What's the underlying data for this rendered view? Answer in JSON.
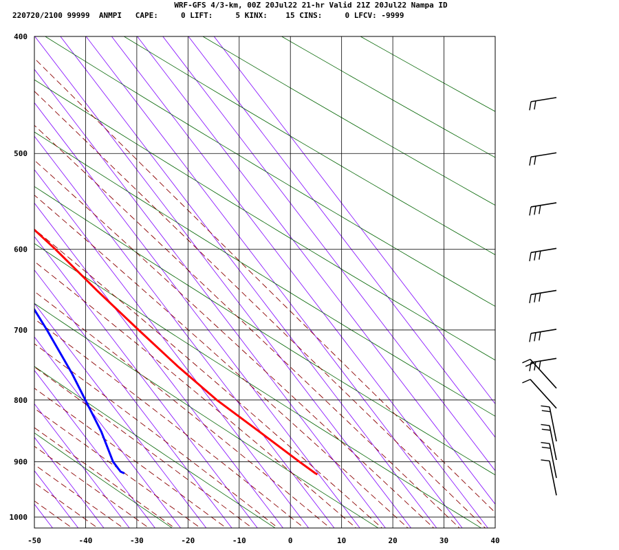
{
  "header": {
    "title": "WRF-GFS 4/3-km, 00Z 20Jul22 21-hr Valid 21Z 20Jul22 Nampa ID",
    "stats": "220720/2100 99999  ANMPI   CAPE:     0 LIFT:     5 KINX:    15 CINS:     0 LFCV: -9999"
  },
  "chart_data": {
    "type": "line",
    "title": "WRF-GFS 4/3-km, 00Z 20Jul22 21-hr Valid 21Z 20Jul22 Nampa ID",
    "subtitle": "220720/2100 99999  ANMPI   CAPE:     0 LIFT:     5 KINX:    15 CINS:     0 LFCV: -9999",
    "xlabel": "",
    "ylabel": "",
    "x_axis": {
      "ticks": [
        -50,
        -40,
        -30,
        -20,
        -10,
        0,
        10,
        20,
        30,
        40
      ],
      "range": [
        -50,
        40
      ],
      "skewed": true
    },
    "y_axis": {
      "ticks": [
        400,
        500,
        600,
        700,
        800,
        900,
        1000
      ],
      "range": [
        400,
        1040
      ],
      "scale": "log",
      "reversed": true
    },
    "grid": true,
    "series": [
      {
        "color": "#ff0000",
        "points": [
          [
            -12.7,
            450
          ],
          [
            -8.9,
            500
          ],
          [
            -5.6,
            550
          ],
          [
            -2.8,
            600
          ],
          [
            -0.8,
            650
          ],
          [
            1.4,
            700
          ],
          [
            3.6,
            750
          ],
          [
            6.2,
            800
          ],
          [
            9.8,
            850
          ],
          [
            13.1,
            900
          ],
          [
            14.5,
            920
          ],
          [
            14.7,
            922
          ]
        ]
      },
      {
        "color": "#0000ff",
        "points": [
          [
            -41.0,
            450
          ],
          [
            -37.4,
            500
          ],
          [
            -26.0,
            553
          ],
          [
            -17.8,
            596
          ],
          [
            -15.1,
            638
          ],
          [
            -16.5,
            700
          ],
          [
            -18.1,
            760
          ],
          [
            -21.1,
            850
          ],
          [
            -23.3,
            900
          ],
          [
            -23.3,
            917
          ],
          [
            -22.8,
            920
          ]
        ]
      }
    ],
    "background_lines": [
      {
        "type": "isotherm",
        "color": "#7f00ff",
        "spacing_c": 5
      },
      {
        "type": "dry_adiabat",
        "color": "#006400"
      },
      {
        "type": "moist_adiabat",
        "color": "#8b0000",
        "style": "dashed"
      }
    ],
    "wind_barbs": {
      "color": "#000000",
      "levels": [
        {
          "pressure": 450,
          "barbs": 2
        },
        {
          "pressure": 500,
          "barbs": 2
        },
        {
          "pressure": 550,
          "barbs": 3
        },
        {
          "pressure": 600,
          "barbs": 3
        },
        {
          "pressure": 650,
          "barbs": 3
        },
        {
          "pressure": 700,
          "barbs": 3
        },
        {
          "pressure": 740,
          "barbs": 3
        },
        {
          "pressure": 770,
          "barbs": 2
        },
        {
          "pressure": 800,
          "barbs": 1
        },
        {
          "pressure": 830,
          "barbs": 2
        },
        {
          "pressure": 860,
          "barbs": 2
        },
        {
          "pressure": 890,
          "barbs": 2
        },
        {
          "pressure": 920,
          "barbs": 1
        }
      ]
    }
  }
}
